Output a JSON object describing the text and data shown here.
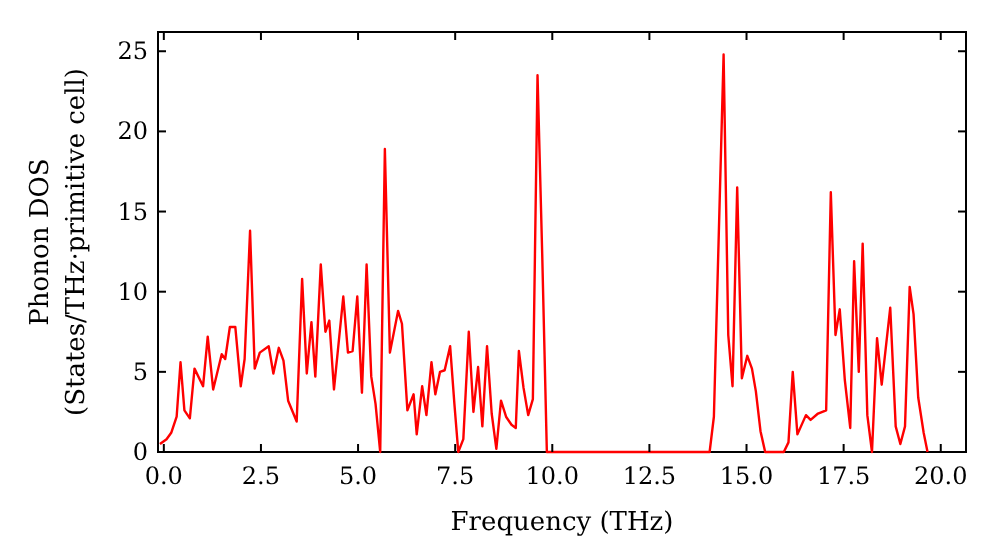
{
  "chart_data": {
    "type": "line",
    "xlabel": "Frequency (THz)",
    "ylabel": "Phonon DOS\n(States/THz·primitive cell)",
    "xlim": [
      -0.15,
      20.65
    ],
    "ylim": [
      0,
      26.2
    ],
    "xticks": [
      {
        "value": 0,
        "label": "0.0"
      },
      {
        "value": 2.5,
        "label": "2.5"
      },
      {
        "value": 5,
        "label": "5.0"
      },
      {
        "value": 7.5,
        "label": "7.5"
      },
      {
        "value": 10,
        "label": "10.0"
      },
      {
        "value": 12.5,
        "label": "12.5"
      },
      {
        "value": 15,
        "label": "15.0"
      },
      {
        "value": 17.5,
        "label": "17.5"
      },
      {
        "value": 20,
        "label": "20.0"
      }
    ],
    "yticks": [
      0,
      5,
      10,
      15,
      20,
      25
    ],
    "grid": false,
    "marker": "none",
    "line_style": "solid",
    "series": [
      {
        "color": "#ff0000",
        "x": [
          -0.1,
          0.07,
          0.19,
          0.33,
          0.43,
          0.53,
          0.67,
          0.79,
          1.01,
          1.13,
          1.27,
          1.49,
          1.58,
          1.7,
          1.84,
          1.98,
          2.08,
          2.22,
          2.34,
          2.47,
          2.7,
          2.82,
          2.96,
          3.08,
          3.2,
          3.42,
          3.56,
          3.68,
          3.8,
          3.9,
          4.04,
          4.16,
          4.26,
          4.38,
          4.62,
          4.74,
          4.86,
          4.98,
          5.1,
          5.22,
          5.34,
          5.45,
          5.57,
          5.69,
          5.82,
          6.03,
          6.13,
          6.27,
          6.43,
          6.51,
          6.65,
          6.76,
          6.89,
          6.99,
          7.11,
          7.23,
          7.37,
          7.48,
          7.58,
          7.71,
          7.85,
          7.97,
          8.09,
          8.2,
          8.32,
          8.44,
          8.56,
          8.68,
          8.81,
          8.95,
          9.06,
          9.14,
          9.26,
          9.38,
          9.5,
          9.62,
          9.74,
          9.86,
          14.05,
          14.16,
          14.41,
          14.53,
          14.64,
          14.76,
          14.88,
          15.02,
          15.14,
          15.24,
          15.36,
          15.48,
          15.96,
          16.08,
          16.19,
          16.31,
          16.53,
          16.65,
          16.84,
          17.05,
          17.17,
          17.29,
          17.4,
          17.53,
          17.67,
          17.77,
          17.89,
          17.99,
          18.11,
          18.23,
          18.36,
          18.48,
          18.7,
          18.84,
          18.96,
          19.08,
          19.2,
          19.3,
          19.42,
          19.56,
          19.66
        ],
        "values": [
          0.5,
          0.8,
          1.2,
          2.2,
          5.6,
          2.6,
          2.1,
          5.2,
          4.1,
          7.2,
          3.9,
          6.1,
          5.8,
          7.8,
          7.8,
          4.1,
          5.8,
          13.8,
          5.2,
          6.2,
          6.6,
          4.9,
          6.5,
          5.7,
          3.2,
          1.9,
          10.8,
          4.9,
          8.1,
          4.7,
          11.7,
          7.5,
          8.2,
          3.9,
          9.7,
          6.2,
          6.3,
          9.7,
          3.7,
          11.7,
          4.7,
          3.0,
          0,
          18.9,
          6.2,
          8.8,
          8.0,
          2.6,
          3.6,
          1.1,
          4.1,
          2.3,
          5.6,
          3.6,
          5.0,
          5.1,
          6.6,
          3.0,
          0,
          0.8,
          7.5,
          2.5,
          5.3,
          1.6,
          6.6,
          2.4,
          0.2,
          3.2,
          2.2,
          1.7,
          1.5,
          6.3,
          4.0,
          2.3,
          3.3,
          23.5,
          12.4,
          0,
          0,
          2.2,
          24.8,
          7.3,
          4.1,
          16.5,
          4.6,
          6.0,
          5.2,
          3.8,
          1.3,
          0,
          0,
          0.6,
          5.0,
          1.1,
          2.3,
          2.0,
          2.4,
          2.6,
          16.2,
          7.3,
          8.9,
          4.5,
          1.5,
          11.9,
          5.0,
          13.0,
          2.3,
          0,
          7.1,
          4.2,
          9.0,
          1.6,
          0.5,
          1.6,
          10.3,
          8.6,
          3.4,
          1.2,
          0
        ]
      }
    ]
  }
}
